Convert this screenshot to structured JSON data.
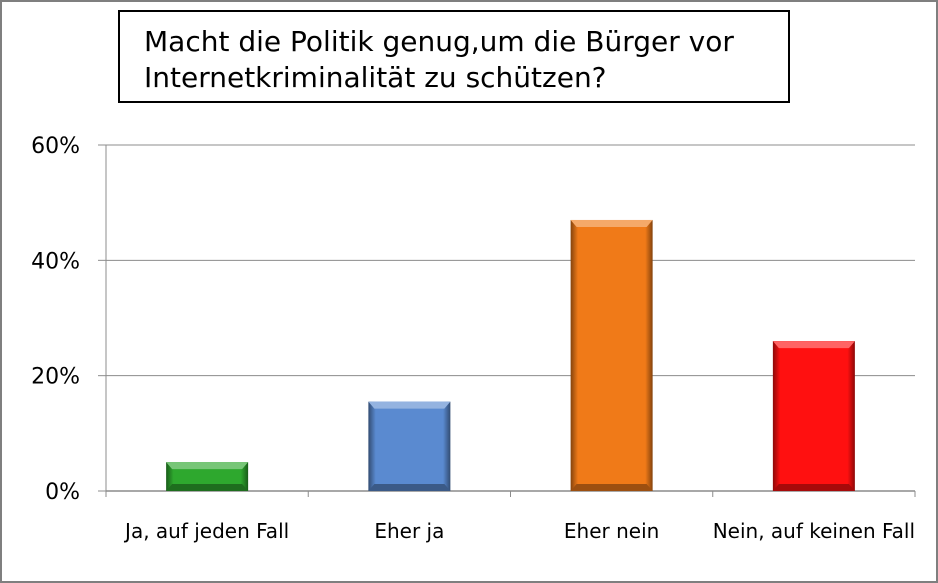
{
  "chart_data": {
    "type": "bar",
    "title": "Macht die Politik genug,um die Bürger vor Internetkriminalität zu schützen?",
    "title_lines": [
      "Macht die Politik genug,um die Bürger vor",
      "Internetkriminalität zu schützen?"
    ],
    "categories": [
      "Ja, auf jeden Fall",
      "Eher ja",
      "Eher nein",
      "Nein, auf keinen Fall"
    ],
    "values": [
      5,
      15.5,
      47,
      26
    ],
    "value_unit": "%",
    "colors": [
      "#2ea82e",
      "#5a8ad0",
      "#f07a18",
      "#ff1010"
    ],
    "ylim": [
      0,
      60
    ],
    "yticks": [
      0,
      20,
      40,
      60
    ],
    "ytick_labels": [
      "0%",
      "20%",
      "40%",
      "60%"
    ],
    "xlabel": "",
    "ylabel": "",
    "grid": true,
    "legend": "none"
  }
}
